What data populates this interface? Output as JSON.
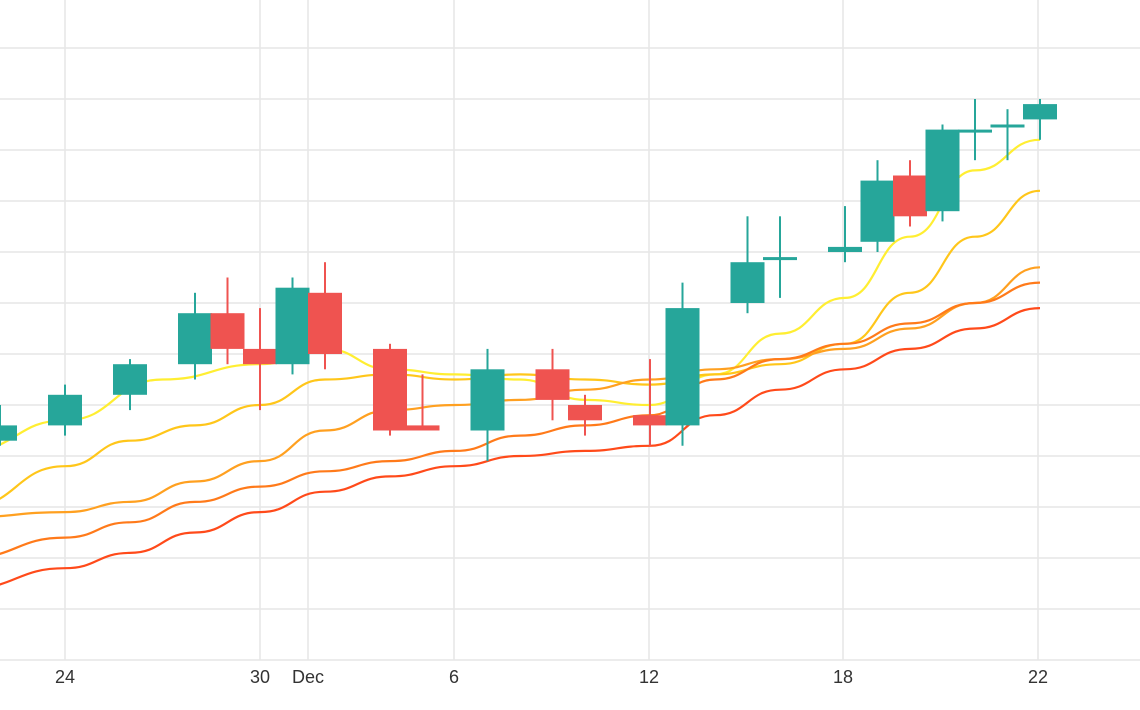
{
  "chart_data": {
    "type": "candlestick",
    "title": "",
    "xlabel": "",
    "ylabel": "",
    "grid": true,
    "x_tick_labels": [
      "24",
      "30",
      "Dec",
      "6",
      "12",
      "18",
      "22"
    ],
    "ylim": [
      0,
      12
    ],
    "candles": [
      {
        "x": "2021-11-22",
        "open": 4.3,
        "high": 5.0,
        "low": 4.2,
        "close": 4.6
      },
      {
        "x": "2021-11-24",
        "open": 4.6,
        "high": 5.4,
        "low": 4.4,
        "close": 5.2
      },
      {
        "x": "2021-11-26",
        "open": 5.2,
        "high": 5.9,
        "low": 4.9,
        "close": 5.8
      },
      {
        "x": "2021-11-28",
        "open": 5.8,
        "high": 7.2,
        "low": 5.5,
        "close": 6.8
      },
      {
        "x": "2021-11-29",
        "open": 6.8,
        "high": 7.5,
        "low": 5.8,
        "close": 6.1
      },
      {
        "x": "2021-11-30",
        "open": 6.1,
        "high": 6.9,
        "low": 4.9,
        "close": 5.8
      },
      {
        "x": "2021-12-01",
        "open": 5.8,
        "high": 7.5,
        "low": 5.6,
        "close": 7.3
      },
      {
        "x": "2021-12-02",
        "open": 7.2,
        "high": 7.8,
        "low": 5.7,
        "close": 6.0
      },
      {
        "x": "2021-12-04",
        "open": 6.1,
        "high": 6.2,
        "low": 4.4,
        "close": 4.5
      },
      {
        "x": "2021-12-05",
        "open": 4.6,
        "high": 5.6,
        "low": 4.5,
        "close": 4.5
      },
      {
        "x": "2021-12-07",
        "open": 4.5,
        "high": 6.1,
        "low": 3.9,
        "close": 5.7
      },
      {
        "x": "2021-12-09",
        "open": 5.7,
        "high": 6.1,
        "low": 4.7,
        "close": 5.1
      },
      {
        "x": "2021-12-10",
        "open": 5.0,
        "high": 5.2,
        "low": 4.4,
        "close": 4.7
      },
      {
        "x": "2021-12-12",
        "open": 4.8,
        "high": 5.9,
        "low": 4.2,
        "close": 4.6
      },
      {
        "x": "2021-12-13",
        "open": 4.6,
        "high": 7.4,
        "low": 4.2,
        "close": 6.9
      },
      {
        "x": "2021-12-15",
        "open": 7.0,
        "high": 8.7,
        "low": 6.8,
        "close": 7.8
      },
      {
        "x": "2021-12-16",
        "open": 7.9,
        "high": 8.7,
        "low": 7.1,
        "close": 7.9
      },
      {
        "x": "2021-12-18",
        "open": 8.0,
        "high": 8.9,
        "low": 7.8,
        "close": 8.1
      },
      {
        "x": "2021-12-19",
        "open": 8.2,
        "high": 9.8,
        "low": 8.0,
        "close": 9.4
      },
      {
        "x": "2021-12-20",
        "open": 9.5,
        "high": 9.8,
        "low": 8.5,
        "close": 8.7
      },
      {
        "x": "2021-12-21",
        "open": 8.8,
        "high": 10.5,
        "low": 8.6,
        "close": 10.4
      },
      {
        "x": "2021-12-22",
        "open": 10.4,
        "high": 11.0,
        "low": 9.8,
        "close": 10.4
      },
      {
        "x": "2021-12-23",
        "open": 10.5,
        "high": 10.8,
        "low": 9.8,
        "close": 10.5
      },
      {
        "x": "2021-12-24",
        "open": 10.6,
        "high": 11.0,
        "low": 10.2,
        "close": 10.9
      }
    ],
    "series": [
      {
        "color": "#ffee32",
        "type": "line",
        "x": [
          "2021-11-21",
          "2021-11-24",
          "2021-11-27",
          "2021-11-30",
          "2021-12-02",
          "2021-12-04",
          "2021-12-06",
          "2021-12-08",
          "2021-12-10",
          "2021-12-12",
          "2021-12-14",
          "2021-12-16",
          "2021-12-18",
          "2021-12-20",
          "2021-12-22",
          "2021-12-24"
        ],
        "values": [
          4.1,
          4.7,
          5.5,
          5.8,
          6.1,
          5.7,
          5.6,
          5.5,
          5.1,
          5.0,
          5.6,
          6.4,
          7.1,
          8.3,
          9.6,
          10.2
        ]
      },
      {
        "color": "#ffc61a",
        "type": "line",
        "x": [
          "2021-11-21",
          "2021-11-24",
          "2021-11-26",
          "2021-11-28",
          "2021-11-30",
          "2021-12-02",
          "2021-12-04",
          "2021-12-06",
          "2021-12-08",
          "2021-12-10",
          "2021-12-12",
          "2021-12-14",
          "2021-12-16",
          "2021-12-18",
          "2021-12-20",
          "2021-12-22",
          "2021-12-24"
        ],
        "values": [
          3.0,
          3.8,
          4.3,
          4.6,
          5.0,
          5.5,
          5.6,
          5.5,
          5.6,
          5.5,
          5.4,
          5.6,
          5.8,
          6.2,
          7.2,
          8.3,
          9.2
        ]
      },
      {
        "color": "#ffa020",
        "type": "line",
        "x": [
          "2021-11-21",
          "2021-11-24",
          "2021-11-26",
          "2021-11-28",
          "2021-11-30",
          "2021-12-02",
          "2021-12-04",
          "2021-12-06",
          "2021-12-08",
          "2021-12-10",
          "2021-12-12",
          "2021-12-14",
          "2021-12-16",
          "2021-12-18",
          "2021-12-20",
          "2021-12-22",
          "2021-12-24"
        ],
        "values": [
          2.8,
          2.9,
          3.1,
          3.5,
          3.9,
          4.5,
          4.9,
          5.0,
          5.1,
          5.3,
          5.5,
          5.7,
          5.9,
          6.1,
          6.5,
          7.0,
          7.7
        ]
      },
      {
        "color": "#ff7a1a",
        "type": "line",
        "x": [
          "2021-11-21",
          "2021-11-24",
          "2021-11-26",
          "2021-11-28",
          "2021-11-30",
          "2021-12-02",
          "2021-12-04",
          "2021-12-06",
          "2021-12-08",
          "2021-12-10",
          "2021-12-12",
          "2021-12-14",
          "2021-12-16",
          "2021-12-18",
          "2021-12-20",
          "2021-12-22",
          "2021-12-24"
        ],
        "values": [
          2.0,
          2.4,
          2.7,
          3.1,
          3.4,
          3.7,
          3.9,
          4.1,
          4.4,
          4.6,
          4.8,
          5.5,
          5.9,
          6.2,
          6.6,
          7.0,
          7.4
        ]
      },
      {
        "color": "#ff4a1a",
        "type": "line",
        "x": [
          "2021-11-21",
          "2021-11-24",
          "2021-11-26",
          "2021-11-28",
          "2021-11-30",
          "2021-12-02",
          "2021-12-04",
          "2021-12-06",
          "2021-12-08",
          "2021-12-10",
          "2021-12-12",
          "2021-12-14",
          "2021-12-16",
          "2021-12-18",
          "2021-12-20",
          "2021-12-22",
          "2021-12-24"
        ],
        "values": [
          1.4,
          1.8,
          2.1,
          2.5,
          2.9,
          3.3,
          3.6,
          3.8,
          4.0,
          4.1,
          4.2,
          4.8,
          5.3,
          5.7,
          6.1,
          6.5,
          6.9
        ]
      }
    ],
    "colors": {
      "up": "#26a69a",
      "down": "#ef5350",
      "grid": "#e6e6e6",
      "axis_text": "#333333"
    }
  }
}
